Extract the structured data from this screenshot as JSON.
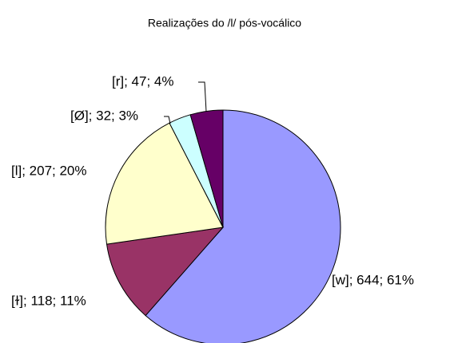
{
  "chart_data": {
    "type": "pie",
    "title": "Realizações do /l/ pós-vocálico",
    "values": [
      644,
      118,
      207,
      32,
      47
    ],
    "value_labels": [
      "[w]; 644; 61%",
      "[ɫ]; 118; 11%",
      "[l]; 207; 20%",
      "[Ø]; 32; 3%",
      "[r]; 47; 4%"
    ],
    "colors": [
      "#9999ff",
      "#993366",
      "#ffffcc",
      "#ccffff",
      "#660066"
    ]
  }
}
